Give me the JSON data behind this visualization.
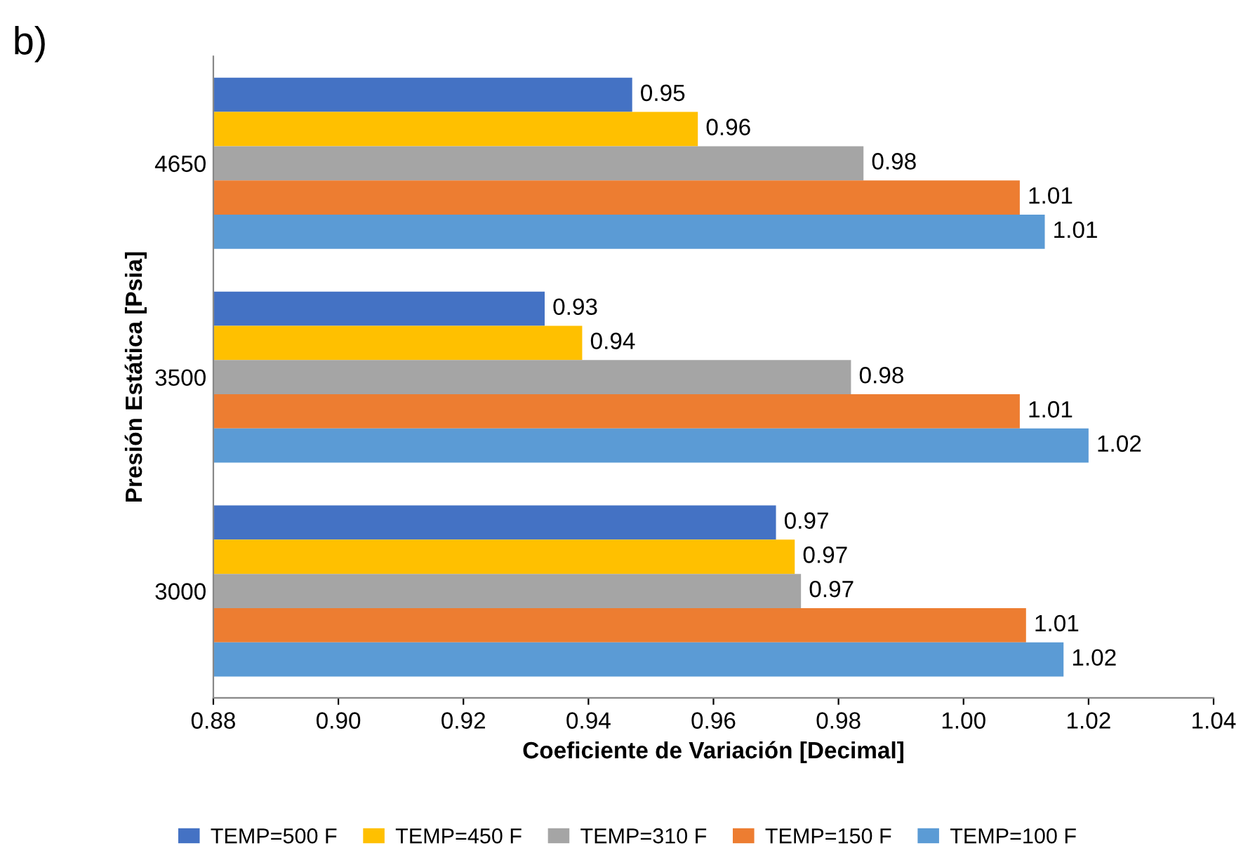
{
  "chart_data": {
    "type": "bar",
    "orientation": "horizontal",
    "xlabel": "Coeficiente de Variación [Decimal]",
    "ylabel": "Presión Estática [Psia]",
    "annotations": [
      "b)"
    ],
    "categories": [
      "4650",
      "3500",
      "3000"
    ],
    "series": [
      {
        "name": "TEMP=500 F",
        "color": "#4472c4",
        "values": [
          0.947,
          0.933,
          0.97
        ],
        "value_labels": [
          "0.95",
          "0.93",
          "0.97"
        ]
      },
      {
        "name": "TEMP=450 F",
        "color": "#ffc000",
        "values": [
          0.9575,
          0.939,
          0.973
        ],
        "value_labels": [
          "0.96",
          "0.94",
          "0.97"
        ]
      },
      {
        "name": "TEMP=310 F",
        "color": "#a5a5a5",
        "values": [
          0.984,
          0.982,
          0.974
        ],
        "value_labels": [
          "0.98",
          "0.98",
          "0.97"
        ]
      },
      {
        "name": "TEMP=150 F",
        "color": "#ed7d31",
        "values": [
          1.009,
          1.009,
          1.01
        ],
        "value_labels": [
          "1.01",
          "1.01",
          "1.01"
        ]
      },
      {
        "name": "TEMP=100 F",
        "color": "#5b9bd5",
        "values": [
          1.013,
          1.02,
          1.016
        ],
        "value_labels": [
          "1.01",
          "1.02",
          "1.02"
        ]
      }
    ],
    "xlim": [
      0.88,
      1.04
    ],
    "xticks": [
      {
        "value": 0.88,
        "label": "0.88"
      },
      {
        "value": 0.9,
        "label": "0.90"
      },
      {
        "value": 0.92,
        "label": "0.92"
      },
      {
        "value": 0.94,
        "label": "0.94"
      },
      {
        "value": 0.96,
        "label": "0.96"
      },
      {
        "value": 0.98,
        "label": "0.98"
      },
      {
        "value": 1.0,
        "label": "1.00"
      },
      {
        "value": 1.02,
        "label": "1.02"
      },
      {
        "value": 1.04,
        "label": "1.04"
      }
    ],
    "grid": false,
    "legend": "bottom"
  }
}
